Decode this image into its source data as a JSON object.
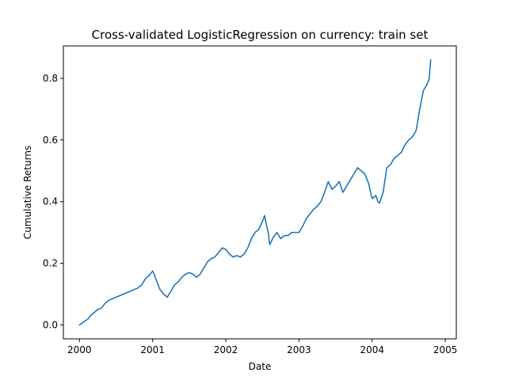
{
  "chart_data": {
    "type": "line",
    "title": "Cross-validated LogisticRegression on currency: train set",
    "xlabel": "Date",
    "ylabel": "Cumulative Returns",
    "xlim": [
      1999.78,
      2005.15
    ],
    "ylim": [
      -0.045,
      0.905
    ],
    "grid": false,
    "x_ticks": [
      {
        "value": 2000,
        "label": "2000"
      },
      {
        "value": 2001,
        "label": "2001"
      },
      {
        "value": 2002,
        "label": "2002"
      },
      {
        "value": 2003,
        "label": "2003"
      },
      {
        "value": 2004,
        "label": "2004"
      },
      {
        "value": 2005,
        "label": "2005"
      }
    ],
    "y_ticks": [
      {
        "value": 0.0,
        "label": "0.0"
      },
      {
        "value": 0.2,
        "label": "0.2"
      },
      {
        "value": 0.4,
        "label": "0.4"
      },
      {
        "value": 0.6,
        "label": "0.6"
      },
      {
        "value": 0.8,
        "label": "0.8"
      }
    ],
    "color": "#1f77b4",
    "series": [
      {
        "x": [
          2000.0,
          2000.03,
          2000.06,
          2000.09,
          2000.12,
          2000.15,
          2000.2,
          2000.25,
          2000.3,
          2000.35,
          2000.4,
          2000.45,
          2000.5,
          2000.55,
          2000.6,
          2000.65,
          2000.7,
          2000.75,
          2000.8,
          2000.85,
          2000.9,
          2000.95,
          2001.0,
          2001.02,
          2001.05,
          2001.1,
          2001.15,
          2001.2,
          2001.25,
          2001.3,
          2001.35,
          2001.4,
          2001.45,
          2001.5,
          2001.55,
          2001.6,
          2001.65,
          2001.7,
          2001.75,
          2001.8,
          2001.85,
          2001.9,
          2001.95,
          2002.0,
          2002.05,
          2002.1,
          2002.15,
          2002.2,
          2002.25,
          2002.3,
          2002.35,
          2002.4,
          2002.45,
          2002.5,
          2002.53,
          2002.55,
          2002.58,
          2002.6,
          2002.65,
          2002.7,
          2002.75,
          2002.8,
          2002.85,
          2002.9,
          2002.95,
          2003.0,
          2003.05,
          2003.1,
          2003.15,
          2003.2,
          2003.25,
          2003.3,
          2003.35,
          2003.4,
          2003.45,
          2003.5,
          2003.55,
          2003.6,
          2003.65,
          2003.7,
          2003.75,
          2003.8,
          2003.85,
          2003.9,
          2003.95,
          2004.0,
          2004.05,
          2004.08,
          2004.1,
          2004.15,
          2004.2,
          2004.25,
          2004.3,
          2004.35,
          2004.4,
          2004.45,
          2004.5,
          2004.55,
          2004.6,
          2004.65,
          2004.7,
          2004.75,
          2004.78,
          2004.8
        ],
        "y": [
          0.0,
          0.005,
          0.01,
          0.015,
          0.02,
          0.03,
          0.04,
          0.05,
          0.055,
          0.07,
          0.08,
          0.085,
          0.09,
          0.095,
          0.1,
          0.105,
          0.11,
          0.115,
          0.12,
          0.13,
          0.15,
          0.16,
          0.175,
          0.165,
          0.145,
          0.115,
          0.1,
          0.09,
          0.11,
          0.13,
          0.14,
          0.155,
          0.165,
          0.17,
          0.165,
          0.155,
          0.165,
          0.185,
          0.205,
          0.215,
          0.22,
          0.235,
          0.25,
          0.245,
          0.23,
          0.22,
          0.225,
          0.22,
          0.23,
          0.25,
          0.28,
          0.3,
          0.31,
          0.335,
          0.355,
          0.33,
          0.3,
          0.26,
          0.285,
          0.3,
          0.28,
          0.29,
          0.29,
          0.3,
          0.3,
          0.3,
          0.32,
          0.345,
          0.36,
          0.375,
          0.385,
          0.4,
          0.43,
          0.465,
          0.44,
          0.45,
          0.465,
          0.43,
          0.45,
          0.47,
          0.49,
          0.51,
          0.5,
          0.49,
          0.46,
          0.41,
          0.42,
          0.4,
          0.395,
          0.43,
          0.51,
          0.52,
          0.54,
          0.55,
          0.56,
          0.585,
          0.6,
          0.61,
          0.63,
          0.7,
          0.76,
          0.78,
          0.8,
          0.86
        ]
      }
    ]
  }
}
